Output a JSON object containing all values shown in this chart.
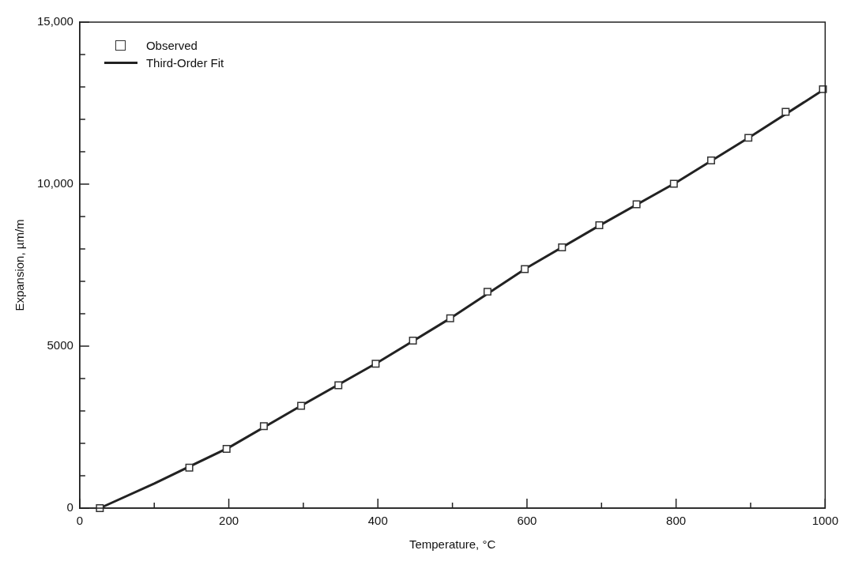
{
  "chart_data": {
    "type": "scatter",
    "xlabel": "Temperature, °C",
    "ylabel": "Expansion, µm/m",
    "xlim": [
      0,
      1000
    ],
    "xticks": [
      0,
      {
        "value": 100,
        "label": null
      },
      200,
      {
        "value": 300,
        "label": null
      },
      400,
      {
        "value": 500,
        "label": null
      },
      600,
      {
        "value": 700,
        "label": null
      },
      800,
      {
        "value": 900,
        "label": null
      },
      1000
    ],
    "ylim": [
      0,
      15000
    ],
    "yticks": [
      0,
      {
        "value": 1000,
        "label": null
      },
      {
        "value": 2000,
        "label": null
      },
      {
        "value": 3000,
        "label": null
      },
      {
        "value": 4000,
        "label": null
      },
      5000,
      {
        "value": 6000,
        "label": null
      },
      {
        "value": 7000,
        "label": null
      },
      {
        "value": 8000,
        "label": null
      },
      {
        "value": 9000,
        "label": null
      },
      {
        "value": 10000,
        "label": "10,000"
      },
      {
        "value": 11000,
        "label": null
      },
      {
        "value": 12000,
        "label": null
      },
      {
        "value": 13000,
        "label": null
      },
      {
        "value": 14000,
        "label": null
      },
      {
        "value": 15000,
        "label": "15,000"
      }
    ],
    "grid": false,
    "legend": "top left",
    "series": [
      {
        "name": "Observed",
        "type": "scatter",
        "marker": "square",
        "color": "#333333",
        "x": [
          27,
          147,
          197,
          247,
          297,
          347,
          397,
          447,
          497,
          547,
          597,
          647,
          697,
          747,
          797,
          847,
          897,
          947,
          997
        ],
        "values": [
          0,
          1250,
          1830,
          2530,
          3160,
          3790,
          4460,
          5170,
          5860,
          6680,
          7380,
          8050,
          8730,
          9380,
          10010,
          10730,
          11430,
          12230,
          12930
        ]
      },
      {
        "name": "Third-Order Fit",
        "type": "line",
        "marker": "none",
        "line_style": "solid",
        "color": "#222222",
        "x": [
          27,
          100,
          200,
          300,
          400,
          500,
          600,
          700,
          800,
          900,
          997
        ],
        "values": [
          0,
          760,
          1870,
          3200,
          4500,
          5900,
          7420,
          8760,
          10050,
          11470,
          12900
        ]
      }
    ]
  }
}
